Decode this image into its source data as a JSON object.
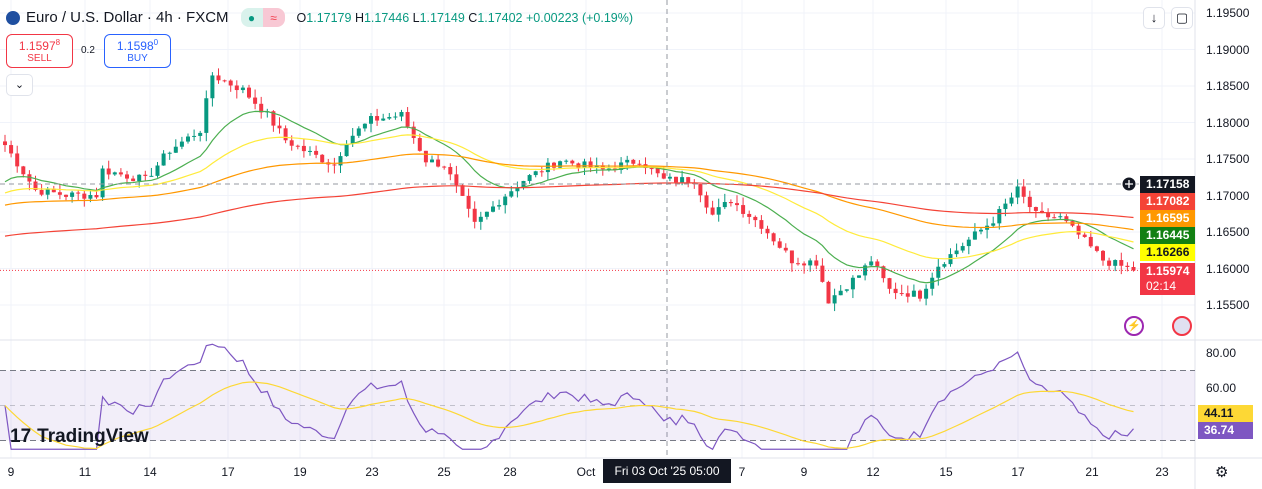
{
  "header": {
    "symbol": "Euro / U.S. Dollar · 4h · FXCM",
    "open_label": "O",
    "open": "1.17179",
    "high_label": "H",
    "high": "1.17446",
    "low_label": "L",
    "low": "1.17149",
    "close_label": "C",
    "close": "1.17402",
    "change": "+0.00223 (+0.19%)",
    "market_open_icon": "●",
    "indicator_icon": "≈"
  },
  "trade": {
    "sell_price": "1.1597",
    "sell_sup": "8",
    "sell_label": "SELL",
    "spread": "0.2",
    "buy_price": "1.1598",
    "buy_sup": "0",
    "buy_label": "BUY"
  },
  "toolbar": {
    "collapse": "⌄",
    "down": "↓",
    "fullscreen": "▢"
  },
  "price_axis": [
    "1.19500",
    "1.19000",
    "1.18500",
    "1.18000",
    "1.17500",
    "1.17000",
    "1.16500",
    "1.16000",
    "1.15500"
  ],
  "price_tags": {
    "crosshair": "1.17158",
    "hidden": "1.17082",
    "orange": "1.16595",
    "green": "1.16445",
    "yellow": "1.16266",
    "last": "1.15974",
    "countdown": "02:14"
  },
  "rsi_axis": [
    "80.00",
    "60.00"
  ],
  "rsi_tags": {
    "ma": "44.11",
    "rsi": "36.74"
  },
  "time_axis": [
    "9",
    "11",
    "14",
    "17",
    "19",
    "23",
    "25",
    "28",
    "Oct",
    "7",
    "9",
    "12",
    "15",
    "17",
    "21",
    "23"
  ],
  "crosshair_time": "Fri 03 Oct '25   05:00",
  "logo": "TradingView",
  "colors": {
    "up": "#089981",
    "down": "#f23645",
    "green_ma": "#4caf50",
    "yellow_ma": "#ffeb3b",
    "orange_ma": "#ff9800",
    "red_ma": "#f44336",
    "rsi": "#7e57c2",
    "rsi_ma": "#fdd835"
  },
  "chart_data": {
    "type": "candlestick",
    "symbol": "EURUSD",
    "timeframe": "4h",
    "ylim": [
      1.152,
      1.197
    ],
    "close_path": [
      [
        0,
        1.17692
      ],
      [
        5,
        1.17075
      ],
      [
        10,
        1.17007
      ],
      [
        15,
        1.17007
      ],
      [
        16,
        1.17349
      ],
      [
        23,
        1.17212
      ],
      [
        27,
        1.17623
      ],
      [
        32,
        1.17897
      ],
      [
        34,
        1.18651
      ],
      [
        39,
        1.18445
      ],
      [
        43,
        1.18103
      ],
      [
        46,
        1.1776
      ],
      [
        49,
        1.1762
      ],
      [
        54,
        1.17418
      ],
      [
        56,
        1.1776
      ],
      [
        60,
        1.18034
      ],
      [
        65,
        1.18103
      ],
      [
        69,
        1.17486
      ],
      [
        72,
        1.17418
      ],
      [
        75,
        1.16938
      ],
      [
        77,
        1.16596
      ],
      [
        82,
        1.17007
      ],
      [
        85,
        1.17212
      ],
      [
        91,
        1.17486
      ],
      [
        98,
        1.17349
      ],
      [
        104,
        1.17486
      ],
      [
        108,
        1.17212
      ],
      [
        113,
        1.17212
      ],
      [
        116,
        1.16733
      ],
      [
        119,
        1.16938
      ],
      [
        124,
        1.16596
      ],
      [
        129,
        1.16116
      ],
      [
        133,
        1.16089
      ],
      [
        135,
        1.15568
      ],
      [
        140,
        1.15911
      ],
      [
        142,
        1.16116
      ],
      [
        145,
        1.15705
      ],
      [
        150,
        1.15637
      ],
      [
        153,
        1.16048
      ],
      [
        157,
        1.16322
      ],
      [
        162,
        1.16664
      ],
      [
        166,
        1.17075
      ],
      [
        169,
        1.16733
      ],
      [
        173,
        1.16692
      ],
      [
        176,
        1.16459
      ],
      [
        180,
        1.16116
      ],
      [
        185,
        1.15974
      ]
    ],
    "rsi_range": [
      20,
      85
    ]
  }
}
